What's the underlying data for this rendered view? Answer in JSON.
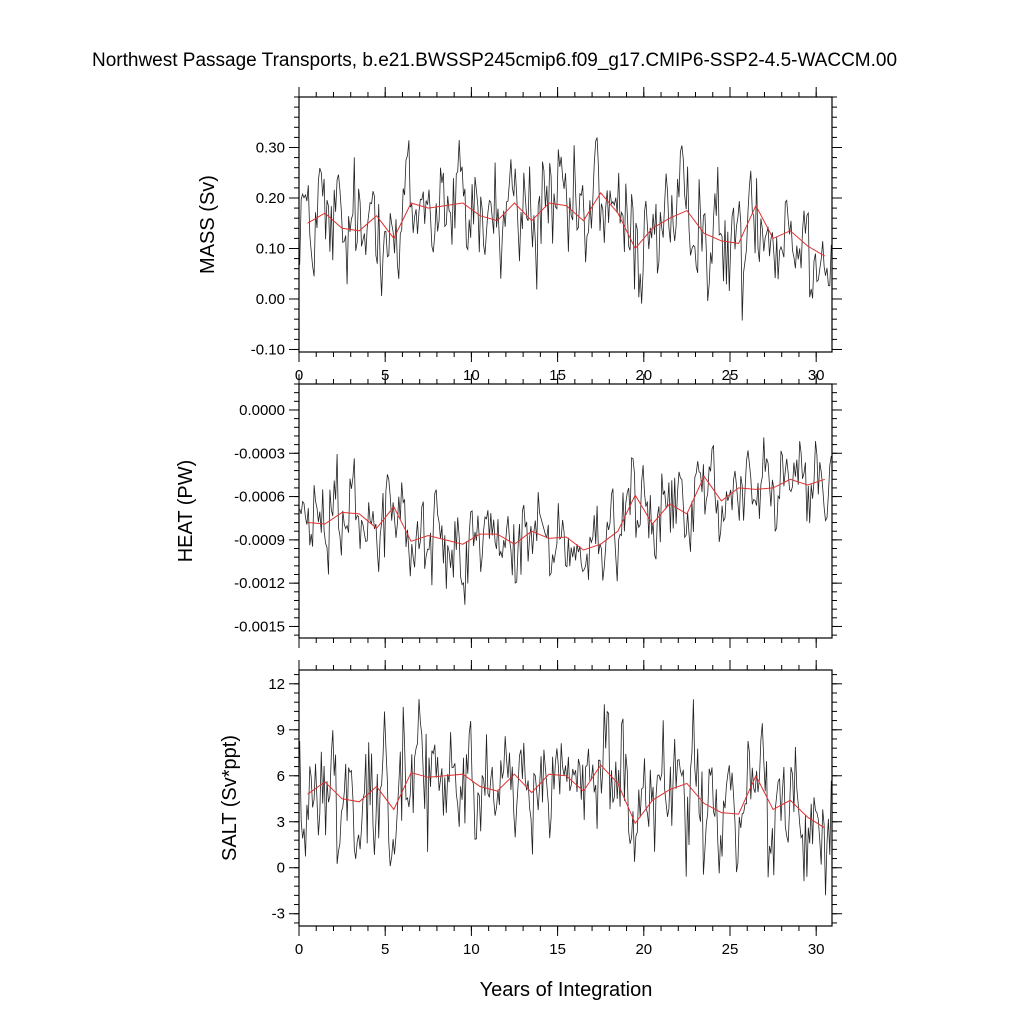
{
  "title": "Northwest Passage Transports, b.e21.BWSSP245cmip6.f09_g17.CMIP6-SSP2-4.5-WACCM.00",
  "xlabel": "Years of Integration",
  "colors": {
    "raw": "#222222",
    "annual_mean": "#e03030",
    "frame": "#000000"
  },
  "chart_data": [
    {
      "type": "line",
      "ylabel": "MASS (Sv)",
      "xlim": [
        0,
        30.917
      ],
      "ylim": [
        -0.105,
        0.4
      ],
      "xticks": [
        {
          "value": 0,
          "label": "0"
        },
        {
          "value": 5,
          "label": "5"
        },
        {
          "value": 10,
          "label": "10"
        },
        {
          "value": 15,
          "label": "15"
        },
        {
          "value": 20,
          "label": "20"
        },
        {
          "value": 25,
          "label": "25"
        },
        {
          "value": 30,
          "label": "30"
        }
      ],
      "yticks": [
        {
          "value": -0.1,
          "label": "-0.10"
        },
        {
          "value": 0.0,
          "label": "0.00"
        },
        {
          "value": 0.1,
          "label": "0.10"
        },
        {
          "value": 0.2,
          "label": "0.20"
        },
        {
          "value": 0.3,
          "label": "0.30"
        }
      ],
      "yminor_step": 0.02,
      "xminor_step": 1,
      "raw_stats": {
        "mean": 0.155,
        "amplitude": 0.075,
        "noise": 0.085
      },
      "annual_mean": {
        "x": [
          0.5,
          1.5,
          2.5,
          3.5,
          4.5,
          5.5,
          6.5,
          7.5,
          8.5,
          9.5,
          10.5,
          11.5,
          12.5,
          13.5,
          14.5,
          15.5,
          16.5,
          17.5,
          18.5,
          19.5,
          20.5,
          21.5,
          22.5,
          23.5,
          24.5,
          25.5,
          26.5,
          27.5,
          28.5,
          29.5,
          30.5
        ],
        "y": [
          0.15,
          0.17,
          0.14,
          0.135,
          0.165,
          0.12,
          0.19,
          0.18,
          0.185,
          0.19,
          0.165,
          0.155,
          0.19,
          0.155,
          0.19,
          0.185,
          0.155,
          0.21,
          0.17,
          0.1,
          0.14,
          0.16,
          0.175,
          0.13,
          0.115,
          0.11,
          0.185,
          0.12,
          0.135,
          0.105,
          0.085
        ]
      }
    },
    {
      "type": "line",
      "ylabel": "HEAT (PW)",
      "xlim": [
        0,
        30.917
      ],
      "ylim": [
        -0.00158,
        0.00018
      ],
      "xticks": [
        {
          "value": 0,
          "label": ""
        },
        {
          "value": 5,
          "label": ""
        },
        {
          "value": 10,
          "label": ""
        },
        {
          "value": 15,
          "label": ""
        },
        {
          "value": 20,
          "label": ""
        },
        {
          "value": 25,
          "label": ""
        },
        {
          "value": 30,
          "label": ""
        }
      ],
      "yticks": [
        {
          "value": -0.0015,
          "label": "-0.0015"
        },
        {
          "value": -0.0012,
          "label": "-0.0012"
        },
        {
          "value": -0.0009,
          "label": "-0.0009"
        },
        {
          "value": -0.0006,
          "label": "-0.0006"
        },
        {
          "value": -0.0003,
          "label": "-0.0003"
        },
        {
          "value": 0.0,
          "label": "0.0000"
        }
      ],
      "yminor_step": 6e-05,
      "xminor_step": 1,
      "raw_stats": {
        "mean": -0.00075,
        "amplitude": 0.00022,
        "noise": 0.00022
      },
      "annual_mean": {
        "x": [
          0.5,
          1.5,
          2.5,
          3.5,
          4.5,
          5.5,
          6.5,
          7.5,
          8.5,
          9.5,
          10.5,
          11.5,
          12.5,
          13.5,
          14.5,
          15.5,
          16.5,
          17.5,
          18.5,
          19.5,
          20.5,
          21.5,
          22.5,
          23.5,
          24.5,
          25.5,
          26.5,
          27.5,
          28.5,
          29.5,
          30.5
        ],
        "y": [
          -0.00078,
          -0.00079,
          -0.00071,
          -0.00072,
          -0.00082,
          -0.00067,
          -0.00091,
          -0.00087,
          -0.0009,
          -0.00093,
          -0.00086,
          -0.00086,
          -0.00093,
          -0.00084,
          -0.00089,
          -0.00088,
          -0.00097,
          -0.00093,
          -0.00084,
          -0.00059,
          -0.00079,
          -0.00065,
          -0.00072,
          -0.00046,
          -0.00063,
          -0.00054,
          -0.00055,
          -0.00054,
          -0.00048,
          -0.00052,
          -0.00048
        ]
      }
    },
    {
      "type": "line",
      "ylabel": "SALT (Sv*ppt)",
      "xlim": [
        0,
        30.917
      ],
      "ylim": [
        -3.8,
        12.9
      ],
      "xticks": [
        {
          "value": 0,
          "label": "0"
        },
        {
          "value": 5,
          "label": "5"
        },
        {
          "value": 10,
          "label": "10"
        },
        {
          "value": 15,
          "label": "15"
        },
        {
          "value": 20,
          "label": "20"
        },
        {
          "value": 25,
          "label": "25"
        },
        {
          "value": 30,
          "label": "30"
        }
      ],
      "yticks": [
        {
          "value": -3,
          "label": "-3"
        },
        {
          "value": 0,
          "label": "0"
        },
        {
          "value": 3,
          "label": "3"
        },
        {
          "value": 6,
          "label": "6"
        },
        {
          "value": 9,
          "label": "9"
        },
        {
          "value": 12,
          "label": "12"
        }
      ],
      "yminor_step": 0.6,
      "xminor_step": 1,
      "raw_stats": {
        "mean": 5.0,
        "amplitude": 2.6,
        "noise": 2.8
      },
      "annual_mean": {
        "x": [
          0.5,
          1.5,
          2.5,
          3.5,
          4.5,
          5.5,
          6.5,
          7.5,
          8.5,
          9.5,
          10.5,
          11.5,
          12.5,
          13.5,
          14.5,
          15.5,
          16.5,
          17.5,
          18.5,
          19.5,
          20.5,
          21.5,
          22.5,
          23.5,
          24.5,
          25.5,
          26.5,
          27.5,
          28.5,
          29.5,
          30.5
        ],
        "y": [
          4.8,
          5.6,
          4.5,
          4.3,
          5.3,
          3.8,
          6.2,
          5.9,
          6.0,
          6.1,
          5.3,
          5.0,
          6.1,
          4.9,
          6.1,
          6.0,
          5.0,
          6.7,
          5.5,
          2.9,
          4.4,
          5.1,
          5.5,
          4.2,
          3.6,
          3.5,
          6.0,
          3.8,
          4.4,
          3.3,
          2.6
        ]
      }
    }
  ]
}
